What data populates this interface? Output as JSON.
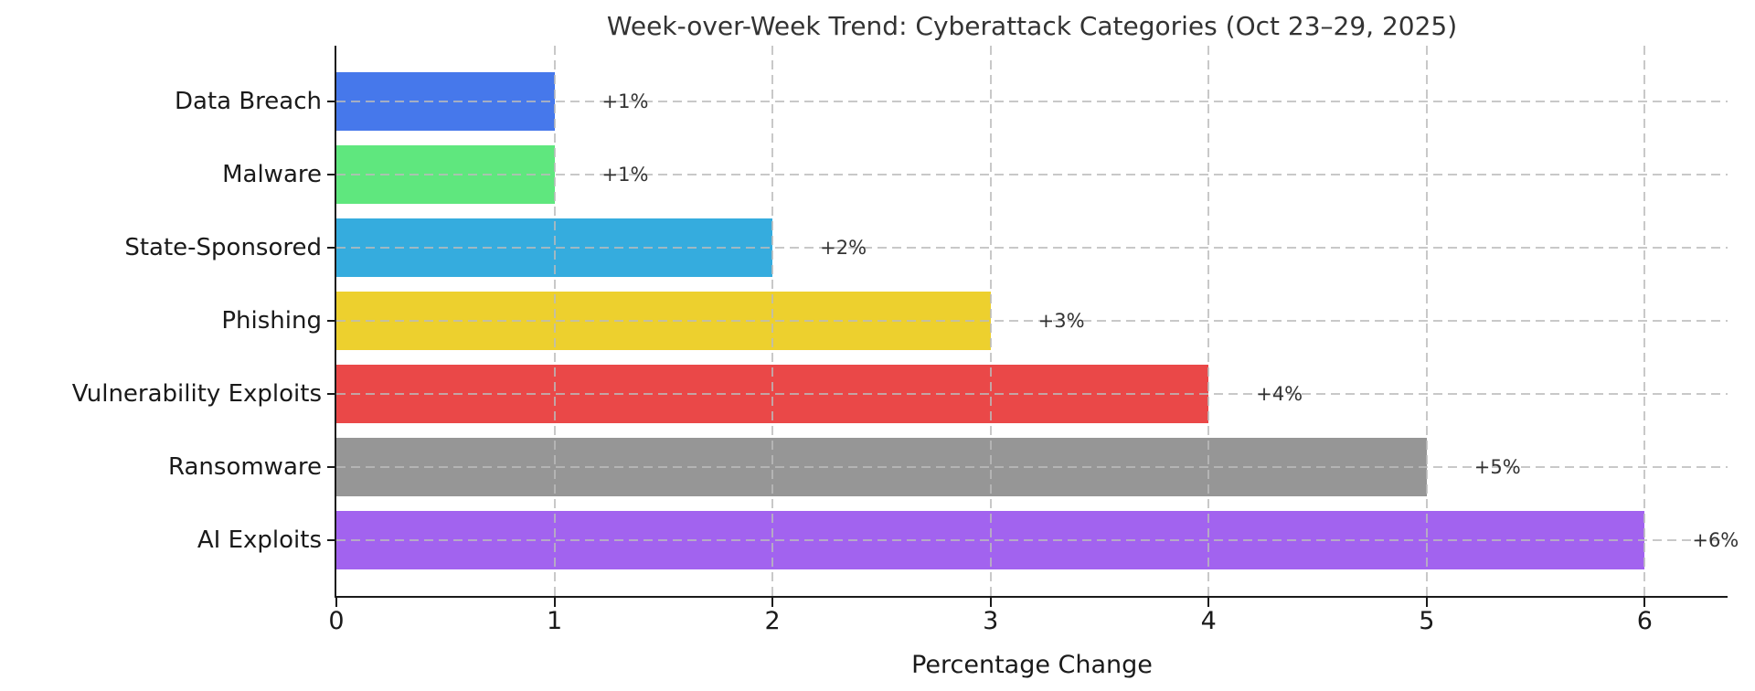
{
  "chart_data": {
    "type": "bar",
    "orientation": "horizontal",
    "title": "Week-over-Week Trend: Cyberattack Categories (Oct 23–29, 2025)",
    "xlabel": "Percentage Change",
    "ylabel": "",
    "categories": [
      "Data Breach",
      "Malware",
      "State-Sponsored",
      "Phishing",
      "Vulnerability Exploits",
      "Ransomware",
      "AI Exploits"
    ],
    "values": [
      1,
      1,
      2,
      3,
      4,
      5,
      6
    ],
    "bar_labels": [
      "+1%",
      "+1%",
      "+2%",
      "+3%",
      "+4%",
      "+5%",
      "+6%"
    ],
    "bar_colors": [
      "#4678EB",
      "#5FE77E",
      "#35ACDE",
      "#EDD02E",
      "#EA4848",
      "#969696",
      "#A263EF"
    ],
    "xticks": [
      0,
      1,
      2,
      3,
      4,
      5,
      6
    ],
    "xlim": [
      0,
      6.38
    ],
    "grid": "dashed gridlines on both axes",
    "legend": "none",
    "spines": "left and bottom only"
  },
  "style": {
    "title_color": "#333333",
    "axis_color": "#1a1a1a",
    "grid_color": "#bbbbbb",
    "background": "#ffffff"
  }
}
